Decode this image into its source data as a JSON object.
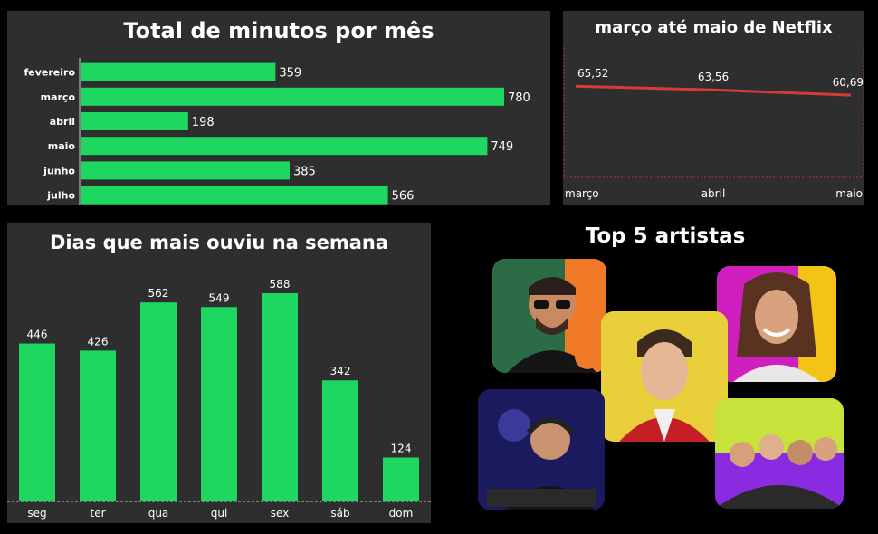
{
  "colors": {
    "bar": "#1ed760",
    "line": "#d83a3a",
    "panel": "#2e2e2e",
    "text": "#ffffff"
  },
  "monthly_panel": {
    "title": "Total de minutos por mês"
  },
  "netflix_panel": {
    "title": "março até maio de Netflix"
  },
  "weekday_panel": {
    "title": "Dias que mais ouviu na semana"
  },
  "artists_panel": {
    "title": "Top 5 artistas",
    "photos": [
      {
        "icon": "artist-photo-man-with-glasses"
      },
      {
        "icon": "artist-photo-young-man-red-jacket"
      },
      {
        "icon": "artist-photo-woman-smiling"
      },
      {
        "icon": "artist-photo-dj-headphones"
      },
      {
        "icon": "artist-photo-group"
      }
    ]
  },
  "chart_data": [
    {
      "type": "bar",
      "orientation": "horizontal",
      "title": "Total de minutos por mês",
      "categories": [
        "fevereiro",
        "março",
        "abril",
        "maio",
        "junho",
        "julho"
      ],
      "values": [
        359,
        780,
        198,
        749,
        385,
        566
      ],
      "xlim": [
        0,
        850
      ],
      "grid": false
    },
    {
      "type": "line",
      "title": "março até maio de Netflix",
      "x": [
        "março",
        "abril",
        "maio"
      ],
      "labels": [
        "65,52",
        "63,56",
        "60,69"
      ],
      "values": [
        65.52,
        63.56,
        60.69
      ],
      "ylim": [
        0,
        70
      ],
      "grid": false
    },
    {
      "type": "bar",
      "title": "Dias que mais ouviu na semana",
      "categories": [
        "seg",
        "ter",
        "qua",
        "qui",
        "sex",
        "sáb",
        "dom"
      ],
      "values": [
        446,
        426,
        562,
        549,
        588,
        342,
        124
      ],
      "ylim": [
        0,
        588
      ],
      "grid": false
    }
  ]
}
